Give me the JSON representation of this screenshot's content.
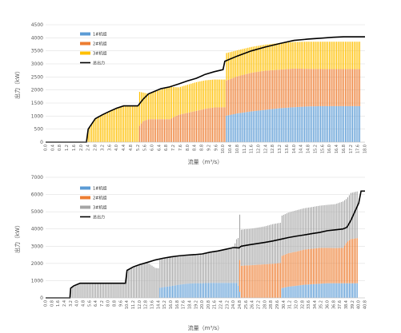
{
  "chart_data": [
    {
      "type": "bar",
      "stacked": true,
      "xlabel": "流量（m³/s）",
      "ylabel": "出力（kW）",
      "ylim": [
        0,
        4500
      ],
      "yticks": [
        0,
        500,
        1000,
        1500,
        2000,
        2500,
        3000,
        3500,
        4000,
        4500
      ],
      "xlim": [
        0,
        18.0
      ],
      "xtick_step": 0.4,
      "grid": true,
      "legend_position": "top-left",
      "colors": {
        "s1": "#5B9BD5",
        "s2": "#ED7D31",
        "s3": "#FFC000",
        "total": "#000000"
      },
      "series": [
        {
          "name": "1#机组",
          "x": [
            10.1,
            17.7
          ],
          "values": [
            [
              10.1,
              1000
            ],
            [
              10.8,
              1100
            ],
            [
              11.6,
              1180
            ],
            [
              12.4,
              1240
            ],
            [
              13.2,
              1300
            ],
            [
              14.0,
              1340
            ],
            [
              14.8,
              1370
            ],
            [
              15.6,
              1380
            ],
            [
              17.7,
              1380
            ]
          ]
        },
        {
          "name": "2#机组",
          "x": [
            5.2,
            17.7
          ],
          "values": [
            [
              5.2,
              550
            ],
            [
              5.5,
              800
            ],
            [
              5.8,
              880
            ],
            [
              7.0,
              880
            ],
            [
              7.5,
              1050
            ],
            [
              8.5,
              1200
            ],
            [
              9.0,
              1280
            ],
            [
              9.5,
              1330
            ],
            [
              10.1,
              1340
            ],
            [
              10.8,
              1420
            ],
            [
              11.6,
              1480
            ],
            [
              12.4,
              1500
            ],
            [
              13.2,
              1480
            ],
            [
              14.0,
              1480
            ],
            [
              14.8,
              1440
            ],
            [
              15.6,
              1420
            ],
            [
              17.7,
              1420
            ]
          ]
        },
        {
          "name": "3#机组",
          "x": [
            2.4,
            17.7
          ],
          "values": [
            [
              2.4,
              500
            ],
            [
              2.8,
              900
            ],
            [
              3.2,
              1050
            ],
            [
              3.6,
              1180
            ],
            [
              4.0,
              1300
            ],
            [
              4.4,
              1390
            ],
            [
              5.2,
              1390
            ],
            [
              5.5,
              1100
            ],
            [
              5.8,
              970
            ],
            [
              7.0,
              1240
            ],
            [
              7.5,
              1050
            ],
            [
              8.5,
              1100
            ],
            [
              9.0,
              1090
            ],
            [
              9.5,
              1070
            ],
            [
              10.1,
              1060
            ],
            [
              10.8,
              1000
            ],
            [
              11.6,
              990
            ],
            [
              12.4,
              1000
            ],
            [
              13.2,
              1020
            ],
            [
              14.0,
              1020
            ],
            [
              14.8,
              1040
            ],
            [
              15.6,
              1050
            ],
            [
              17.7,
              1050
            ]
          ]
        },
        {
          "name": "总出力",
          "x": [
            0,
            18.0
          ],
          "values": [
            [
              0,
              0
            ],
            [
              2.3,
              0
            ],
            [
              2.4,
              500
            ],
            [
              2.8,
              900
            ],
            [
              3.2,
              1050
            ],
            [
              3.6,
              1180
            ],
            [
              4.0,
              1300
            ],
            [
              4.4,
              1390
            ],
            [
              5.2,
              1390
            ],
            [
              5.5,
              1650
            ],
            [
              5.8,
              1850
            ],
            [
              6.5,
              2050
            ],
            [
              7.0,
              2120
            ],
            [
              7.5,
              2230
            ],
            [
              8.0,
              2350
            ],
            [
              8.5,
              2450
            ],
            [
              9.0,
              2600
            ],
            [
              9.5,
              2700
            ],
            [
              10.0,
              2780
            ],
            [
              10.1,
              3100
            ],
            [
              10.8,
              3300
            ],
            [
              11.6,
              3500
            ],
            [
              12.4,
              3650
            ],
            [
              13.2,
              3780
            ],
            [
              14.0,
              3900
            ],
            [
              14.8,
              3950
            ],
            [
              15.6,
              3990
            ],
            [
              16.2,
              4020
            ],
            [
              16.8,
              4040
            ],
            [
              17.7,
              4040
            ],
            [
              18.0,
              4040
            ]
          ]
        }
      ]
    },
    {
      "type": "bar",
      "stacked": true,
      "xlabel": "流量（m³/s）",
      "ylabel": "出力（kW）",
      "ylim": [
        0,
        7000
      ],
      "yticks": [
        0,
        1000,
        2000,
        3000,
        4000,
        5000,
        6000,
        7000
      ],
      "xlim": [
        0,
        40.8
      ],
      "xtick_step": 0.8,
      "grid": true,
      "legend_position": "top-left",
      "colors": {
        "s1": "#5B9BD5",
        "s2": "#ED7D31",
        "s3": "#A5A5A5",
        "total": "#000000"
      },
      "series": [
        {
          "name": "1#机组",
          "values": [
            [
              14.4,
              560
            ],
            [
              15.0,
              620
            ],
            [
              16.0,
              680
            ],
            [
              17.0,
              760
            ],
            [
              18.0,
              820
            ],
            [
              19.0,
              850
            ],
            [
              20.0,
              850
            ],
            [
              21.0,
              870
            ],
            [
              22.0,
              870
            ],
            [
              24.5,
              870
            ],
            [
              25.0,
              0
            ],
            [
              30.0,
              0
            ],
            [
              30.1,
              560
            ],
            [
              31.0,
              650
            ],
            [
              32.0,
              700
            ],
            [
              33.0,
              760
            ],
            [
              34.0,
              790
            ],
            [
              35.0,
              820
            ],
            [
              36.0,
              850
            ],
            [
              40.0,
              850
            ]
          ]
        },
        {
          "name": "2#机组",
          "values": [
            [
              24.7,
              0
            ],
            [
              24.8,
              1850
            ],
            [
              25.5,
              1880
            ],
            [
              26.5,
              1900
            ],
            [
              27.0,
              1920
            ],
            [
              28.0,
              1950
            ],
            [
              29.0,
              1980
            ],
            [
              30.0,
              2030
            ],
            [
              30.1,
              1860
            ],
            [
              31.0,
              1940
            ],
            [
              32.0,
              1980
            ],
            [
              33.0,
              2040
            ],
            [
              34.0,
              2060
            ],
            [
              35.0,
              2080
            ],
            [
              36.0,
              2050
            ],
            [
              37.0,
              2040
            ],
            [
              38.0,
              2050
            ],
            [
              38.5,
              2400
            ],
            [
              39.0,
              2560
            ],
            [
              40.0,
              2630
            ]
          ]
        },
        {
          "name": "3#机组",
          "values": [
            [
              3.2,
              560
            ],
            [
              3.6,
              700
            ],
            [
              4.4,
              850
            ],
            [
              10.2,
              850
            ],
            [
              10.4,
              1600
            ],
            [
              11.2,
              1800
            ],
            [
              12.0,
              1930
            ],
            [
              13.0,
              2060
            ],
            [
              14.0,
              1740
            ],
            [
              15.0,
              1680
            ],
            [
              16.0,
              1700
            ],
            [
              17.0,
              1680
            ],
            [
              18.0,
              1660
            ],
            [
              19.0,
              1660
            ],
            [
              20.0,
              1700
            ],
            [
              21.0,
              1780
            ],
            [
              22.0,
              1850
            ],
            [
              23.0,
              1950
            ],
            [
              24.0,
              2050
            ],
            [
              24.7,
              2900
            ],
            [
              25.0,
              2100
            ],
            [
              26.0,
              2120
            ],
            [
              27.0,
              2150
            ],
            [
              28.0,
              2200
            ],
            [
              29.0,
              2300
            ],
            [
              30.0,
              2330
            ],
            [
              31.0,
              2360
            ],
            [
              32.0,
              2400
            ],
            [
              33.0,
              2400
            ],
            [
              34.0,
              2420
            ],
            [
              35.0,
              2450
            ],
            [
              36.0,
              2500
            ],
            [
              37.0,
              2550
            ],
            [
              38.0,
              2700
            ],
            [
              38.5,
              2520
            ],
            [
              39.0,
              2680
            ],
            [
              40.0,
              2720
            ]
          ]
        },
        {
          "name": "总出力",
          "values": [
            [
              0,
              0
            ],
            [
              3.1,
              0
            ],
            [
              3.2,
              560
            ],
            [
              3.6,
              700
            ],
            [
              4.4,
              850
            ],
            [
              10.2,
              850
            ],
            [
              10.4,
              1600
            ],
            [
              11.2,
              1800
            ],
            [
              12.0,
              1930
            ],
            [
              13.0,
              2060
            ],
            [
              14.0,
              2200
            ],
            [
              15.0,
              2300
            ],
            [
              16.0,
              2380
            ],
            [
              17.0,
              2440
            ],
            [
              18.0,
              2480
            ],
            [
              19.0,
              2510
            ],
            [
              20.0,
              2550
            ],
            [
              21.0,
              2650
            ],
            [
              22.0,
              2720
            ],
            [
              23.0,
              2820
            ],
            [
              24.0,
              2920
            ],
            [
              24.7,
              2900
            ],
            [
              25.0,
              3000
            ],
            [
              26.0,
              3080
            ],
            [
              27.0,
              3150
            ],
            [
              28.0,
              3220
            ],
            [
              29.0,
              3300
            ],
            [
              30.0,
              3400
            ],
            [
              31.0,
              3500
            ],
            [
              32.0,
              3580
            ],
            [
              33.0,
              3650
            ],
            [
              34.0,
              3730
            ],
            [
              35.0,
              3800
            ],
            [
              36.0,
              3900
            ],
            [
              37.0,
              3950
            ],
            [
              38.0,
              4000
            ],
            [
              38.5,
              4100
            ],
            [
              39.0,
              4500
            ],
            [
              40.0,
              5500
            ],
            [
              40.3,
              6200
            ],
            [
              40.8,
              6200
            ]
          ]
        }
      ]
    }
  ]
}
